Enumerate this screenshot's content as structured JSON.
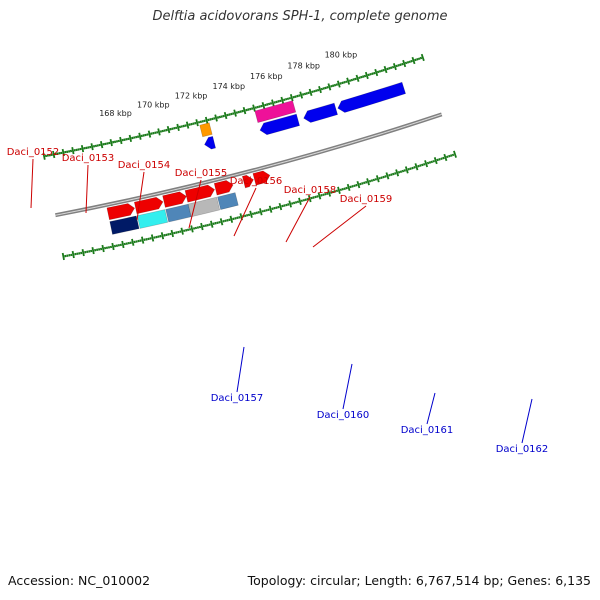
{
  "title": "Delftia acidovorans SPH-1, complete genome",
  "footer": {
    "accession": "Accession: NC_010002",
    "summary": "Topology: circular; Length: 6,767,514 bp; Genes: 6,135"
  },
  "colors": {
    "backbone": "#808080",
    "tick": "#1a7a1a",
    "forward_label": "#cc0000",
    "reverse_label": "#0000cc",
    "cog_navy": "#001a66",
    "cog_cyan": "#33eeee",
    "cog_steel": "#4f86b8",
    "cog_silver": "#b8b8b8",
    "cog_sky": "#22aaee",
    "cds_forward": "#ee0000",
    "cds_reverse": "#0000ee",
    "cog_orange": "#ff9900",
    "cog_magenta": "#ee1199"
  },
  "scale": {
    "unit": "kbp",
    "labels": [
      {
        "text": "168 kbp",
        "kbp": 168
      },
      {
        "text": "170 kbp",
        "kbp": 170
      },
      {
        "text": "172 kbp",
        "kbp": 172
      },
      {
        "text": "174 kbp",
        "kbp": 174
      },
      {
        "text": "176 kbp",
        "kbp": 176
      },
      {
        "text": "178 kbp",
        "kbp": 178
      },
      {
        "text": "180 kbp",
        "kbp": 180
      }
    ]
  },
  "genes": [
    {
      "name": "Daci_0152",
      "strand": "+",
      "start_kbp": 166.6,
      "end_kbp": 167.95,
      "cog_color": "#001a66"
    },
    {
      "name": "Daci_0153",
      "strand": "+",
      "start_kbp": 168.0,
      "end_kbp": 169.4,
      "cog_color": "#33eeee"
    },
    {
      "name": "Daci_0154",
      "strand": "+",
      "start_kbp": 169.45,
      "end_kbp": 170.6,
      "cog_color": "#4f86b8"
    },
    {
      "name": "Daci_0155",
      "strand": "+",
      "start_kbp": 170.6,
      "end_kbp": 172.05,
      "cog_color": "#b8b8b8"
    },
    {
      "name": "Daci_0156",
      "strand": "+",
      "start_kbp": 172.1,
      "end_kbp": 173.0,
      "cog_color": "#4f86b8"
    },
    {
      "name": "Daci_0157",
      "strand": "-",
      "start_kbp": 172.1,
      "end_kbp": 172.6,
      "cog_color": "#ff9900"
    },
    {
      "name": "Daci_0158",
      "strand": "+",
      "start_kbp": 173.55,
      "end_kbp": 174.05,
      "cog_color": ""
    },
    {
      "name": "Daci_0159",
      "strand": "+",
      "start_kbp": 174.1,
      "end_kbp": 174.9,
      "cog_color": ""
    },
    {
      "name": "Daci_0160",
      "strand": "-",
      "start_kbp": 175.0,
      "end_kbp": 177.0,
      "cog_color": "#ee1199"
    },
    {
      "name": "Daci_0161",
      "strand": "-",
      "start_kbp": 177.3,
      "end_kbp": 179.0,
      "cog_color": ""
    },
    {
      "name": "Daci_0162",
      "strand": "-",
      "start_kbp": 179.1,
      "end_kbp": 182.6,
      "cog_color": ""
    }
  ]
}
